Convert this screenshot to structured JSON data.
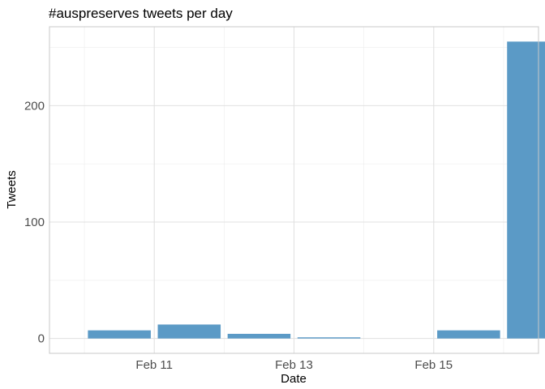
{
  "chart_data": {
    "type": "bar",
    "title": "#auspreserves tweets per day",
    "xlabel": "Date",
    "ylabel": "Tweets",
    "x": [
      "2018-02-10",
      "2018-02-11",
      "2018-02-12",
      "2018-02-13",
      "2018-02-14",
      "2018-02-15",
      "2018-02-16"
    ],
    "values": [
      7,
      12,
      4,
      1,
      0,
      7,
      255
    ],
    "xlim": [
      "2018-02-09 12:00",
      "2018-02-16 12:00"
    ],
    "ylim": [
      -12.75,
      267.75
    ],
    "x_ticks": [
      {
        "date": "2018-02-11",
        "label": "Feb 11"
      },
      {
        "date": "2018-02-13",
        "label": "Feb 13"
      },
      {
        "date": "2018-02-15",
        "label": "Feb 15"
      }
    ],
    "y_ticks": [
      0,
      100,
      200
    ],
    "bar_color": "#5b9ac6",
    "grid": true,
    "legend": "none"
  }
}
